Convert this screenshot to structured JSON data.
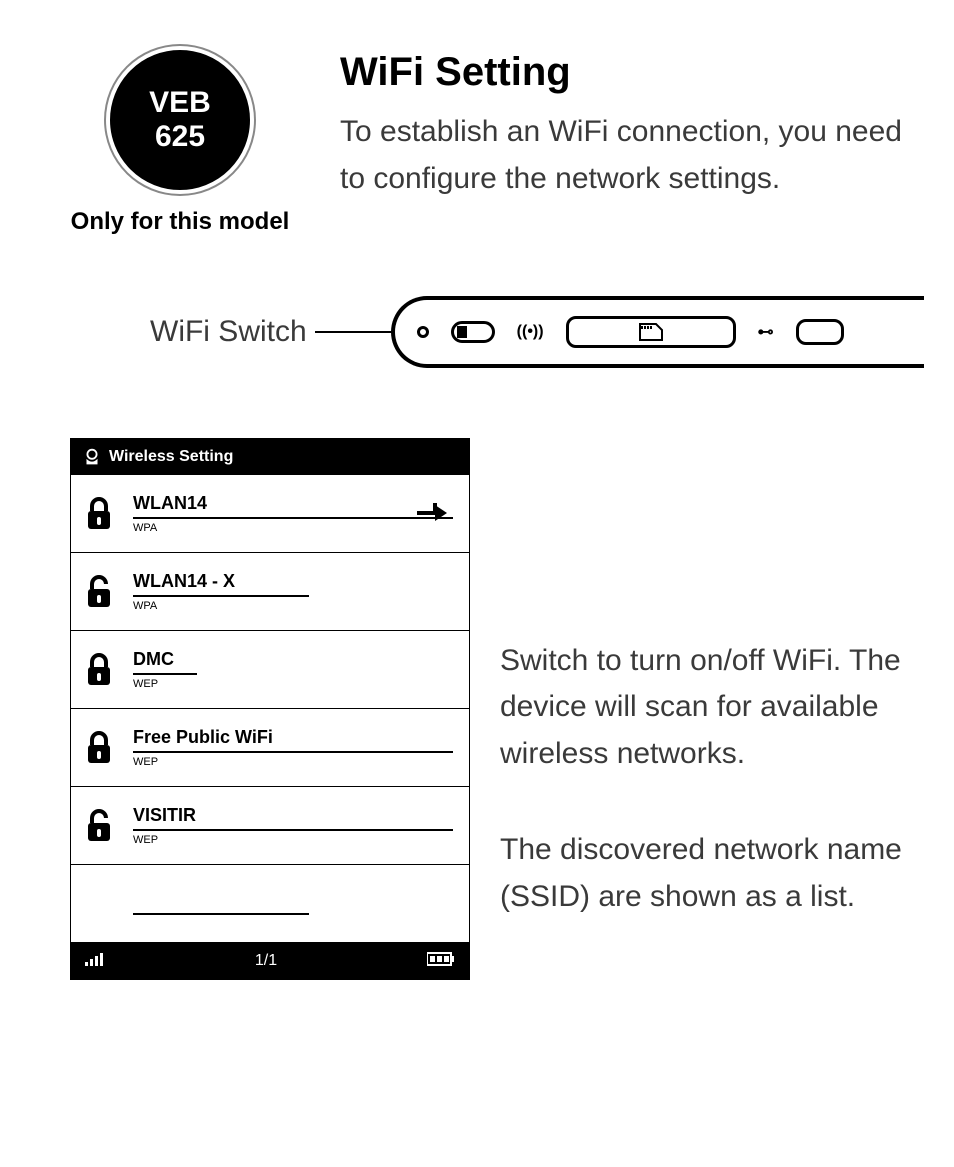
{
  "badge": {
    "line1": "VEB",
    "line2": "625",
    "caption": "Only for this model"
  },
  "heading": "WiFi Setting",
  "intro": "To establish an WiFi connection, you need to configure the network settings.",
  "switch_label": "WiFi Switch",
  "screen": {
    "title": "Wireless Setting",
    "page": "1/1",
    "networks": [
      {
        "name": "WLAN14",
        "enc": "WPA",
        "lock": "closed",
        "underline": "full-u",
        "pointer": true
      },
      {
        "name": "WLAN14 - X",
        "enc": "WPA",
        "lock": "open",
        "underline": "half-u"
      },
      {
        "name": "DMC",
        "enc": "WEP",
        "lock": "closed",
        "underline": "dmc-u"
      },
      {
        "name": "Free Public WiFi",
        "enc": "WEP",
        "lock": "closed",
        "underline": "full-u"
      },
      {
        "name": "VISITIR",
        "enc": "WEP",
        "lock": "open",
        "underline": "full-u"
      },
      {
        "name": "",
        "enc": "",
        "lock": "",
        "underline": "half-u",
        "blank": true
      }
    ]
  },
  "side": {
    "p1": "Switch to turn on/off WiFi. The device will scan for available wireless networks.",
    "p2": "The discovered network name (SSID) are shown as a list."
  }
}
